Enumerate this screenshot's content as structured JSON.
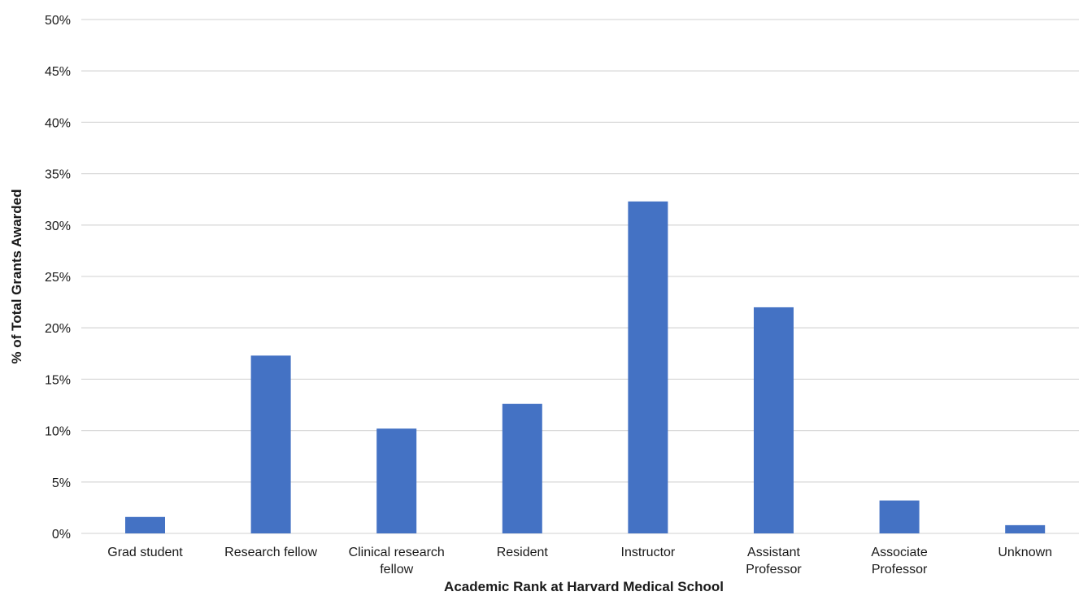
{
  "chart_data": {
    "type": "bar",
    "xlabel": "Academic Rank at Harvard Medical School",
    "ylabel": "% of Total Grants Awarded",
    "categories": [
      [
        "Grad student"
      ],
      [
        "Research fellow"
      ],
      [
        "Clinical research",
        "fellow"
      ],
      [
        "Resident"
      ],
      [
        "Instructor"
      ],
      [
        "Assistant",
        "Professor"
      ],
      [
        "Associate",
        "Professor"
      ],
      [
        "Unknown"
      ]
    ],
    "values": [
      1.6,
      17.3,
      10.2,
      12.6,
      32.3,
      22.0,
      3.2,
      0.8
    ],
    "ylim": [
      0,
      50
    ],
    "yticks": [
      0,
      5,
      10,
      15,
      20,
      25,
      30,
      35,
      40,
      45,
      50
    ],
    "ytick_labels": [
      "0%",
      "5%",
      "10%",
      "15%",
      "20%",
      "25%",
      "30%",
      "35%",
      "40%",
      "45%",
      "50%"
    ],
    "grid": true,
    "legend": "none",
    "bar_color": "#4472c4"
  }
}
